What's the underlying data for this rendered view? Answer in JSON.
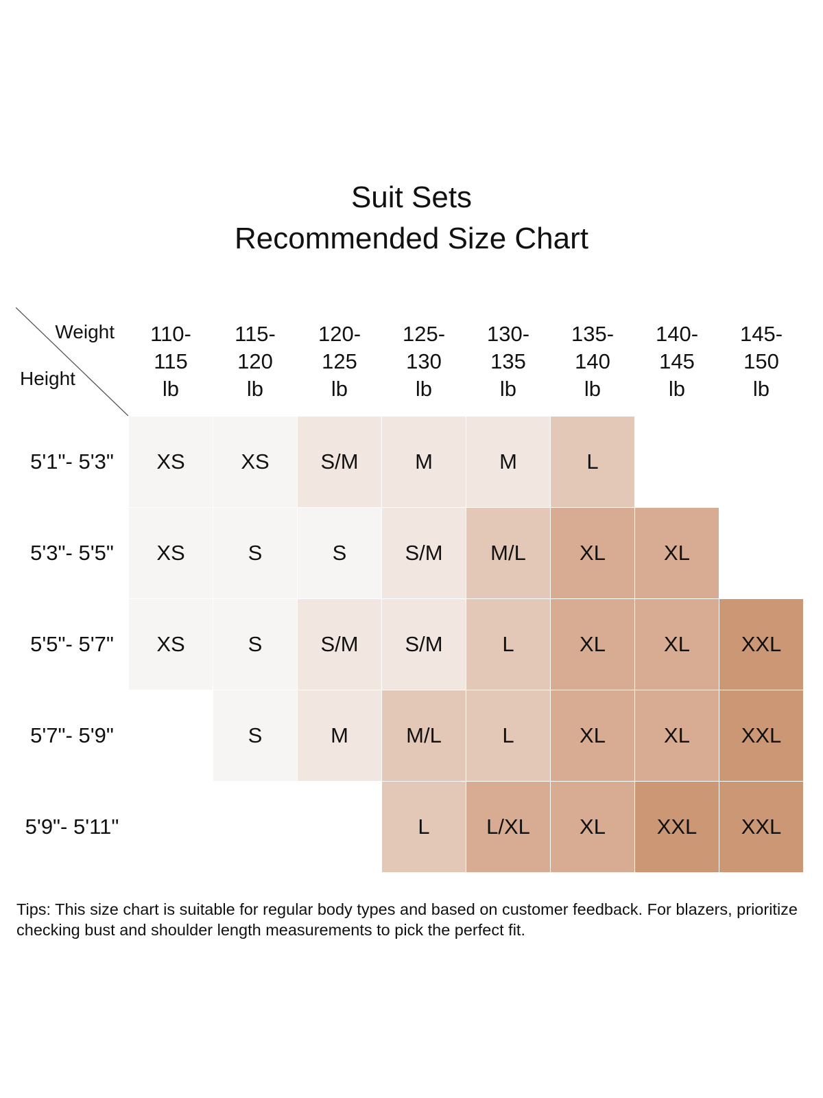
{
  "title": {
    "line1": "Suit Sets",
    "line2": "Recommended Size Chart"
  },
  "corner": {
    "weight_label": "Weight",
    "height_label": "Height"
  },
  "chart_data": {
    "type": "table",
    "title": "Suit Sets Recommended Size Chart",
    "column_axis_label": "Weight",
    "row_axis_label": "Height",
    "columns": [
      {
        "lines": [
          "110-",
          "115",
          "lb"
        ]
      },
      {
        "lines": [
          "115-",
          "120",
          "lb"
        ]
      },
      {
        "lines": [
          "120-",
          "125",
          "lb"
        ]
      },
      {
        "lines": [
          "125-",
          "130",
          "lb"
        ]
      },
      {
        "lines": [
          "130-",
          "135",
          "lb"
        ]
      },
      {
        "lines": [
          "135-",
          "140",
          "lb"
        ]
      },
      {
        "lines": [
          "140-",
          "145",
          "lb"
        ]
      },
      {
        "lines": [
          "145-",
          "150",
          "lb"
        ]
      }
    ],
    "rows": [
      {
        "height": "5'1\"- 5'3\"",
        "sizes": [
          "XS",
          "XS",
          "S/M",
          "M",
          "M",
          "L",
          "",
          ""
        ]
      },
      {
        "height": "5'3\"- 5'5\"",
        "sizes": [
          "XS",
          "S",
          "S",
          "S/M",
          "M/L",
          "XL",
          "XL",
          ""
        ]
      },
      {
        "height": "5'5\"- 5'7\"",
        "sizes": [
          "XS",
          "S",
          "S/M",
          "S/M",
          "L",
          "XL",
          "XL",
          "XXL"
        ]
      },
      {
        "height": "5'7\"- 5'9\"",
        "sizes": [
          "",
          "S",
          "M",
          "M/L",
          "L",
          "XL",
          "XL",
          "XXL"
        ]
      },
      {
        "height": "5'9\"- 5'11\"",
        "sizes": [
          "",
          "",
          "",
          "L",
          "L/XL",
          "XL",
          "XXL",
          "XXL"
        ]
      }
    ],
    "size_colors": {
      "XS": "#f7f5f4",
      "S": "#f7f5f4",
      "S/M": "#f2e6e1",
      "M": "#f2e6e1",
      "M/L": "#e4c8b7",
      "L": "#e4c8b7",
      "L/XL": "#d7ac93",
      "XL": "#d7ac93",
      "XXL": "#cb9775"
    }
  },
  "tips": "Tips: This size chart is suitable for regular body types and based on customer feedback. For blazers, prioritize checking bust and shoulder length measurements to pick the perfect fit."
}
